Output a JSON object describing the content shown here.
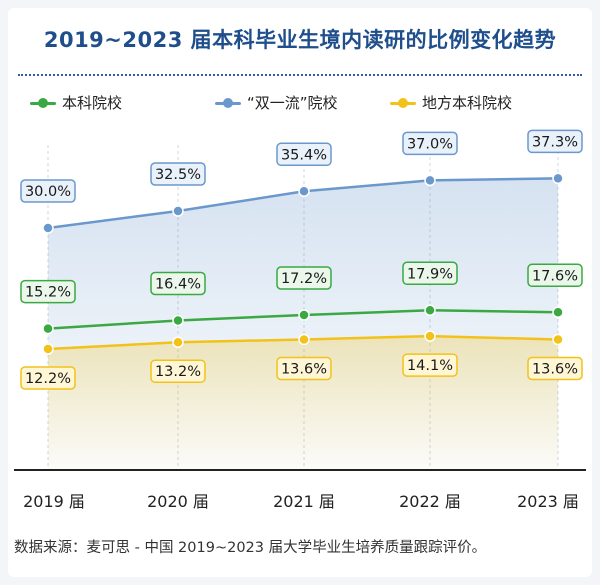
{
  "chart_data": {
    "type": "line",
    "title": "2019~2023 届本科毕业生境内读研的比例变化趋势",
    "categories": [
      "2019 届",
      "2020 届",
      "2021 届",
      "2022 届",
      "2023 届"
    ],
    "series": [
      {
        "name": "本科院校",
        "values": [
          15.2,
          16.4,
          17.2,
          17.9,
          17.6
        ],
        "labels": [
          "15.2%",
          "16.4%",
          "17.2%",
          "17.9%",
          "17.6%"
        ],
        "color": "#3aa843",
        "label_position": "above"
      },
      {
        "name": "“双一流”院校",
        "values": [
          30.0,
          32.5,
          35.4,
          37.0,
          37.3
        ],
        "labels": [
          "30.0%",
          "32.5%",
          "35.4%",
          "37.0%",
          "37.3%"
        ],
        "color": "#6b98cc",
        "label_position": "above"
      },
      {
        "name": "地方本科院校",
        "values": [
          12.2,
          13.2,
          13.6,
          14.1,
          13.6
        ],
        "labels": [
          "12.2%",
          "13.2%",
          "13.6%",
          "14.1%",
          "13.6%"
        ],
        "color": "#f2c21a",
        "label_position": "below"
      }
    ],
    "ylim": [
      0,
      40
    ],
    "grid": false,
    "legend": "top",
    "source": "数据来源：麦可思 - 中国 2019~2023 届大学毕业生培养质量跟踪评价。"
  }
}
